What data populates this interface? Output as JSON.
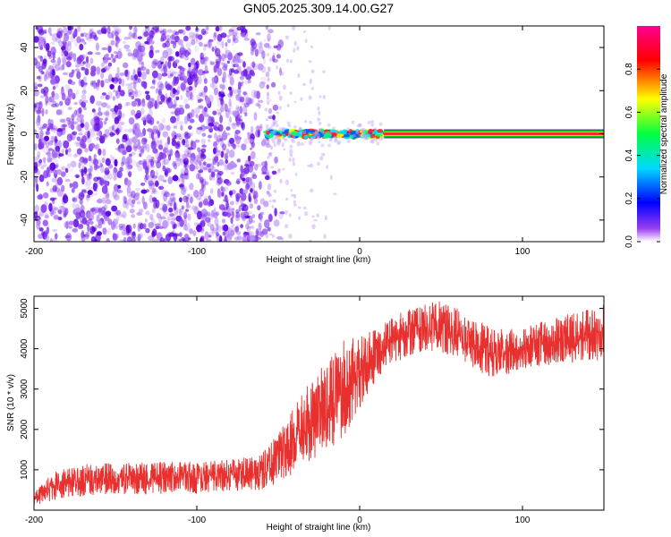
{
  "title": "GN05.2025.309.14.00.G27",
  "chart_data": [
    {
      "type": "heatmap",
      "title": "GN05.2025.309.14.00.G27",
      "xlabel": "Height of straight line (km)",
      "ylabel": "Frequency (Hz)",
      "xlim": [
        -200,
        150
      ],
      "ylim": [
        -50,
        50
      ],
      "xticks": [
        -200,
        -100,
        0,
        100
      ],
      "yticks": [
        -40,
        -20,
        0,
        20,
        40
      ],
      "colorbar": {
        "label": "Normalized spectral amplitude",
        "range": [
          0,
          1
        ],
        "ticks": [
          "0.0",
          "0.2",
          "0.4",
          "0.6",
          "0.8"
        ],
        "colors": [
          "#ffffff",
          "#7a00e6",
          "#0000ff",
          "#00c8ff",
          "#00ff40",
          "#ffff00",
          "#ff0000",
          "#ff0080"
        ]
      },
      "regions": [
        {
          "x": [
            -200,
            -57
          ],
          "pattern": "noise",
          "color": "#7a3de8"
        },
        {
          "x": [
            -57,
            15
          ],
          "frequency": 0,
          "pattern": "noisy signal line"
        },
        {
          "x": [
            15,
            150
          ],
          "frequency": 0,
          "pattern": "steady signal line",
          "peak_amplitude": 1.0
        }
      ]
    },
    {
      "type": "line",
      "xlabel": "Height of straight line (km)",
      "ylabel": "SNR (10 * v/v)",
      "xlim": [
        -200,
        150
      ],
      "ylim": [
        0,
        5300
      ],
      "xticks": [
        -200,
        -100,
        0,
        100
      ],
      "yticks": [
        1000,
        2000,
        3000,
        4000,
        5000
      ],
      "series": [
        {
          "color": "#e8302f",
          "envelope": {
            "x": [
              -200,
              -190,
              -180,
              -150,
              -100,
              -80,
              -60,
              -50,
              -40,
              -30,
              -20,
              -10,
              0,
              10,
              20,
              30,
              40,
              50,
              60,
              70,
              80,
              90,
              100,
              120,
              140,
              150
            ],
            "low": [
              60,
              220,
              320,
              370,
              420,
              480,
              500,
              650,
              900,
              1200,
              1500,
              1750,
              2500,
              3200,
              3600,
              3800,
              3900,
              3900,
              3800,
              3500,
              3300,
              3300,
              3500,
              3600,
              3700,
              3700
            ],
            "high": [
              450,
              900,
              1100,
              1200,
              1200,
              1250,
              1400,
              2000,
              2600,
              3200,
              3700,
              4200,
              4300,
              4500,
              4800,
              5000,
              5100,
              5200,
              5000,
              4700,
              4600,
              4500,
              4500,
              4800,
              5000,
              5100
            ]
          }
        }
      ]
    }
  ]
}
